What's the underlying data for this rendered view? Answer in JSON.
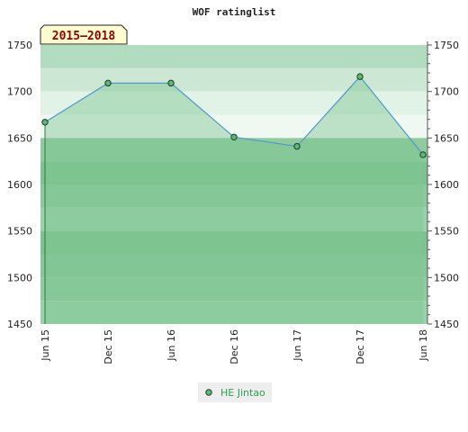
{
  "chart_data": {
    "type": "line",
    "title": "WOF ratinglist",
    "subtitle": "2015–2018",
    "x": [
      "Jun 15",
      "Dec 15",
      "Jun 16",
      "Dec 16",
      "Jun 17",
      "Dec 17",
      "Jun 18"
    ],
    "series": [
      {
        "name": "HE Jintao",
        "values": [
          1667,
          1709,
          1709,
          1651,
          1641,
          1716,
          1632
        ]
      }
    ],
    "ylim": [
      1450,
      1750
    ],
    "y_ticks": [
      "1450",
      "1500",
      "1550",
      "1600",
      "1650",
      "1700",
      "1750"
    ],
    "grid": true,
    "legend_position": "bottom-center",
    "colors": {
      "line": "#4f98c9",
      "marker_fill": "#5cb87a",
      "marker_stroke": "#1d3b26",
      "area_fill": "#7fc593",
      "badge_bg": "#fffdd0",
      "legend_text": "#2e9e4f",
      "legend_bg": "#eeeeee"
    },
    "bands": [
      {
        "from": 1725,
        "to": 1750,
        "color": "#b2dcbf"
      },
      {
        "from": 1700,
        "to": 1725,
        "color": "#cce8d4"
      },
      {
        "from": 1675,
        "to": 1700,
        "color": "#e1f2e6"
      },
      {
        "from": 1650,
        "to": 1675,
        "color": "#f0f8f2"
      },
      {
        "from": 1625,
        "to": 1650,
        "color": "#8fcb9f"
      },
      {
        "from": 1600,
        "to": 1625,
        "color": "#7dc391"
      },
      {
        "from": 1575,
        "to": 1600,
        "color": "#8bc99c"
      },
      {
        "from": 1550,
        "to": 1575,
        "color": "#9ad1a9"
      },
      {
        "from": 1525,
        "to": 1550,
        "color": "#7dc391"
      },
      {
        "from": 1500,
        "to": 1525,
        "color": "#86c698"
      },
      {
        "from": 1475,
        "to": 1500,
        "color": "#8fcb9f"
      },
      {
        "from": 1450,
        "to": 1475,
        "color": "#9ad1a9"
      }
    ]
  }
}
